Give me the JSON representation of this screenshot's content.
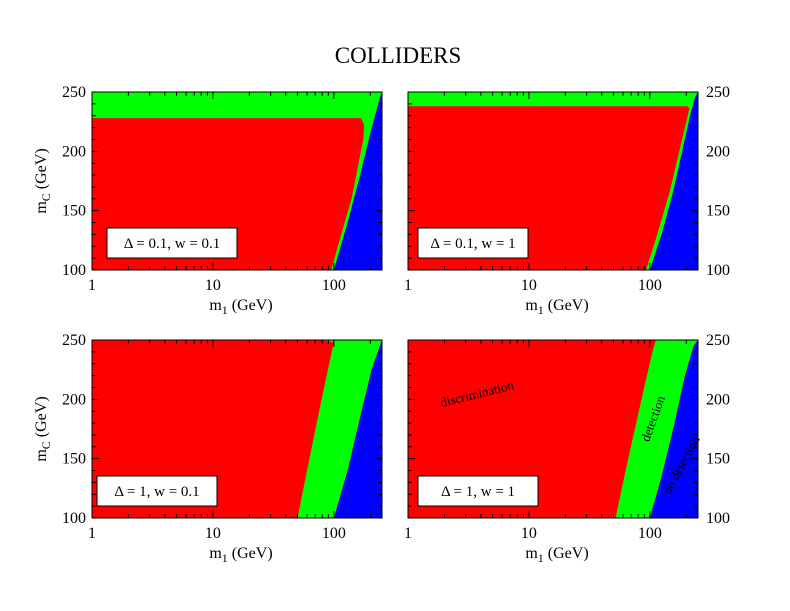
{
  "title": "COLLIDERS",
  "colors": {
    "discrimination": "#ff0000",
    "detection": "#00ff00",
    "no_detection": "#0000ff",
    "frame": "#000000"
  },
  "axes": {
    "x_label_main": "m",
    "x_label_sub": "1",
    "x_label_unit": "(GeV)",
    "y_label_main": "m",
    "y_label_sub": "C",
    "y_label_unit": "(GeV)"
  },
  "chart_data": [
    {
      "type": "area",
      "panel": "top-left",
      "label": "Δ = 0.1,  w = 0.1",
      "xscale": "log",
      "xlim": [
        1,
        250
      ],
      "ylim": [
        100,
        250
      ],
      "xticks": [
        1,
        10,
        100
      ],
      "xtick_labels": [
        "1",
        "10",
        "100"
      ],
      "yticks": [
        100,
        150,
        200,
        250
      ],
      "ytick_labels": [
        "100",
        "150",
        "200",
        "250"
      ],
      "y_axis_side": "left",
      "regions": [
        {
          "name": "detection",
          "fill": "#00ff00",
          "region": "full"
        },
        {
          "name": "discrimination",
          "fill": "#ff0000",
          "ymax": 228,
          "boundary_x": [
            95,
            115,
            140,
            160,
            175,
            178,
            168
          ],
          "boundary_y": [
            100,
            130,
            160,
            190,
            210,
            222,
            228
          ]
        },
        {
          "name": "no_detection",
          "fill": "#0000ff",
          "boundary_x": [
            100,
            130,
            165,
            200,
            240,
            250
          ],
          "boundary_y": [
            100,
            140,
            180,
            215,
            245,
            250
          ]
        }
      ]
    },
    {
      "type": "area",
      "panel": "top-right",
      "label": "Δ = 0.1,  w = 1",
      "xscale": "log",
      "xlim": [
        1,
        250
      ],
      "ylim": [
        100,
        250
      ],
      "xticks": [
        1,
        10,
        100
      ],
      "xtick_labels": [
        "1",
        "10",
        "100"
      ],
      "yticks": [
        100,
        150,
        200,
        250
      ],
      "ytick_labels": [
        "100",
        "150",
        "200",
        "250"
      ],
      "y_axis_side": "right",
      "regions": [
        {
          "name": "detection",
          "fill": "#00ff00",
          "region": "full"
        },
        {
          "name": "discrimination",
          "fill": "#ff0000",
          "ymax": 238,
          "boundary_x": [
            93,
            115,
            145,
            175,
            200,
            212,
            205
          ],
          "boundary_y": [
            100,
            130,
            165,
            200,
            225,
            236,
            238
          ]
        },
        {
          "name": "no_detection",
          "fill": "#0000ff",
          "boundary_x": [
            100,
            125,
            155,
            185,
            215,
            235,
            250
          ],
          "boundary_y": [
            100,
            130,
            165,
            200,
            230,
            245,
            250
          ]
        }
      ]
    },
    {
      "type": "area",
      "panel": "bottom-left",
      "label": "Δ = 1,  w = 0.1",
      "xscale": "log",
      "xlim": [
        1,
        250
      ],
      "ylim": [
        100,
        250
      ],
      "xticks": [
        1,
        10,
        100
      ],
      "xtick_labels": [
        "1",
        "10",
        "100"
      ],
      "yticks": [
        100,
        150,
        200,
        250
      ],
      "ytick_labels": [
        "100",
        "150",
        "200",
        "250"
      ],
      "y_axis_side": "left",
      "regions": [
        {
          "name": "detection",
          "fill": "#00ff00",
          "region": "full"
        },
        {
          "name": "discrimination",
          "fill": "#ff0000",
          "ymax": 250,
          "boundary_x": [
            50,
            60,
            72,
            85,
            96,
            100,
            80
          ],
          "boundary_y": [
            100,
            140,
            180,
            215,
            240,
            248,
            250
          ]
        },
        {
          "name": "no_detection",
          "fill": "#0000ff",
          "boundary_x": [
            100,
            130,
            165,
            205,
            250
          ],
          "boundary_y": [
            100,
            140,
            185,
            225,
            250
          ]
        }
      ]
    },
    {
      "type": "area",
      "panel": "bottom-right",
      "label": "Δ = 1,  w = 1",
      "xscale": "log",
      "xlim": [
        1,
        250
      ],
      "ylim": [
        100,
        250
      ],
      "xticks": [
        1,
        10,
        100
      ],
      "xtick_labels": [
        "1",
        "10",
        "100"
      ],
      "yticks": [
        100,
        150,
        200,
        250
      ],
      "ytick_labels": [
        "100",
        "150",
        "200",
        "250"
      ],
      "y_axis_side": "right",
      "annotations": [
        "discrimination",
        "detection",
        "no detection"
      ],
      "regions": [
        {
          "name": "detection",
          "fill": "#00ff00",
          "region": "full"
        },
        {
          "name": "discrimination",
          "fill": "#ff0000",
          "ymax": 250,
          "boundary_x": [
            52,
            63,
            77,
            92,
            105,
            112
          ],
          "boundary_y": [
            100,
            140,
            180,
            215,
            240,
            250
          ]
        },
        {
          "name": "no_detection",
          "fill": "#0000ff",
          "boundary_x": [
            100,
            125,
            160,
            195,
            230,
            250
          ],
          "boundary_y": [
            100,
            135,
            180,
            220,
            245,
            250
          ]
        }
      ]
    }
  ]
}
